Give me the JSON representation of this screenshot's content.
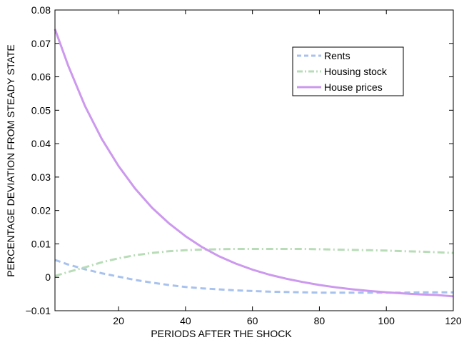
{
  "chart_data": {
    "type": "line",
    "title": "",
    "xlabel": "PERIODS AFTER THE SHOCK",
    "ylabel": "PERCENTAGE DEVIATION FROM STEADY STATE",
    "xlim": [
      1,
      120
    ],
    "ylim": [
      -0.01,
      0.08
    ],
    "xticks": [
      20,
      40,
      60,
      80,
      100,
      120
    ],
    "xtick_labels": [
      "20",
      "40",
      "60",
      "80",
      "100",
      "120"
    ],
    "yticks": [
      -0.01,
      0,
      0.01,
      0.02,
      0.03,
      0.04,
      0.05,
      0.06,
      0.07,
      0.08
    ],
    "ytick_labels": [
      "−0.01",
      "0",
      "0.01",
      "0.02",
      "0.03",
      "0.04",
      "0.05",
      "0.06",
      "0.07",
      "0.08"
    ],
    "grid": false,
    "legend_position": "top-right",
    "x": [
      1,
      5,
      10,
      15,
      20,
      25,
      30,
      35,
      40,
      45,
      50,
      55,
      60,
      65,
      70,
      75,
      80,
      85,
      90,
      95,
      100,
      105,
      110,
      115,
      120
    ],
    "series": [
      {
        "name": "Rents",
        "color": "#a8c2ee",
        "style": "dashed",
        "values": [
          0.0052,
          0.0038,
          0.0024,
          0.0012,
          0.0002,
          -0.0008,
          -0.0016,
          -0.0023,
          -0.0029,
          -0.0033,
          -0.0036,
          -0.0039,
          -0.0041,
          -0.0043,
          -0.0044,
          -0.0045,
          -0.0046,
          -0.0046,
          -0.0046,
          -0.0046,
          -0.0046,
          -0.0046,
          -0.0045,
          -0.0045,
          -0.0045
        ]
      },
      {
        "name": "Housing stock",
        "color": "#b9dcb8",
        "style": "dashdot",
        "values": [
          0.0004,
          0.0016,
          0.003,
          0.0045,
          0.0057,
          0.0066,
          0.0073,
          0.0078,
          0.0081,
          0.0083,
          0.0084,
          0.0085,
          0.0085,
          0.0085,
          0.0085,
          0.0085,
          0.0084,
          0.0083,
          0.0082,
          0.0081,
          0.008,
          0.0078,
          0.0077,
          0.0075,
          0.0073
        ]
      },
      {
        "name": "House prices",
        "color": "#cc99ee",
        "style": "solid",
        "values": [
          0.0743,
          0.0632,
          0.0512,
          0.0414,
          0.0333,
          0.0265,
          0.0208,
          0.0162,
          0.0123,
          0.009,
          0.0063,
          0.0041,
          0.0023,
          0.0008,
          -0.0004,
          -0.0014,
          -0.0023,
          -0.003,
          -0.0036,
          -0.0041,
          -0.0045,
          -0.0048,
          -0.0051,
          -0.0053,
          -0.0057
        ]
      }
    ]
  }
}
